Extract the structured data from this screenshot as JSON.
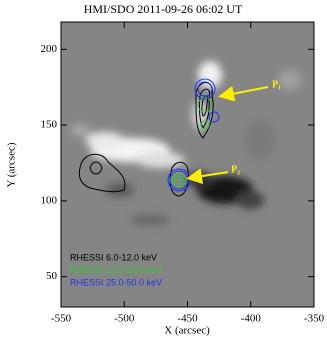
{
  "chart_data": {
    "type": "image",
    "title": "HMI/SDO  2011-09-26  06:02 UT",
    "xlabel": "X (arcsec)",
    "ylabel": "Y (arcsec)",
    "xlim": [
      -550,
      -350
    ],
    "xticks": [
      -550,
      -500,
      -450,
      -400,
      -350
    ],
    "ylim": [
      30,
      218
    ],
    "yticks": [
      50,
      100,
      150,
      200
    ],
    "series": [
      {
        "name": "RHESSI 6.0-12.0 keV",
        "color": "#000000"
      },
      {
        "name": "RHESSI 12.0-25.0 keV",
        "color": "#33cc33"
      },
      {
        "name": "RHESSI 25.0-50.0 keV",
        "color": "#2233ee"
      }
    ],
    "annotations": [
      "P₁",
      "P₂"
    ]
  }
}
